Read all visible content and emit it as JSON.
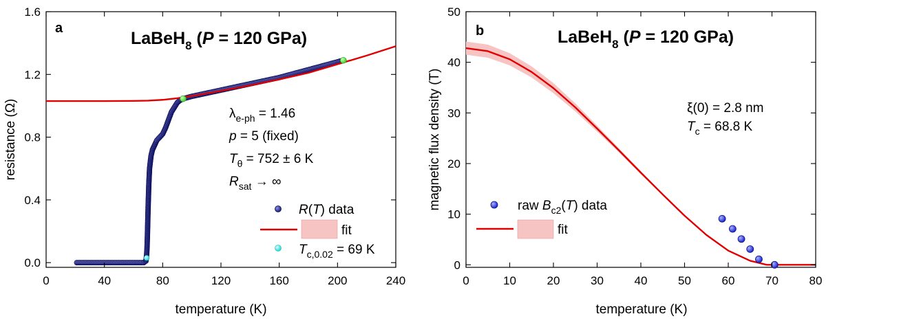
{
  "chart_data": [
    {
      "type": "scatter",
      "panel_label": "a",
      "title": {
        "main": "LaBeH",
        "sub": "8",
        "open": " (",
        "italic": "P",
        "rest": " = 120 GPa)"
      },
      "xlabel": "temperature (K)",
      "ylabel": "resistance (Ω)",
      "xlim": [
        0,
        240
      ],
      "ylim": [
        -0.03,
        1.6
      ],
      "xticks": [
        "0",
        "40",
        "80",
        "120",
        "160",
        "200",
        "240"
      ],
      "yticks": [
        "0.0",
        "0.4",
        "0.8",
        "1.2",
        "1.6"
      ],
      "annotations": {
        "lambda": {
          "sym": "λ",
          "sub": "e-ph",
          "rest": " = 1.46"
        },
        "p": {
          "italic": "p",
          "rest": " = 5 (fixed)"
        },
        "theta": {
          "italic": "T",
          "sub": "θ",
          "rest": " = 752 ± 6 K"
        },
        "rsat": {
          "italic": "R",
          "sub": "sat",
          "rest": " → ∞"
        }
      },
      "legend": {
        "data": {
          "italic": "R",
          "rest": "(T) data",
          "paren_open": "(",
          "paren_T": "T",
          "paren_close": ") data"
        },
        "fit": "fit",
        "tc": {
          "italic": "T",
          "sub": "c,0.02",
          "rest": " = 69 K"
        }
      },
      "series": [
        {
          "role": "data",
          "color": "#1c1f7a",
          "x": [
            21,
            30,
            40,
            50,
            60,
            67,
            68.5,
            69,
            69.3,
            69.6,
            70,
            70.5,
            71,
            72,
            73,
            74,
            75,
            76,
            78,
            80,
            82,
            84,
            86,
            88,
            90,
            92,
            94,
            100,
            110,
            120,
            130,
            140,
            150,
            160,
            170,
            180,
            190,
            200,
            204
          ],
          "y": [
            0,
            0,
            0,
            0,
            0,
            0,
            0.01,
            0.05,
            0.1,
            0.2,
            0.35,
            0.5,
            0.6,
            0.68,
            0.72,
            0.74,
            0.76,
            0.78,
            0.8,
            0.82,
            0.86,
            0.91,
            0.96,
            0.99,
            1.02,
            1.035,
            1.045,
            1.06,
            1.08,
            1.1,
            1.12,
            1.14,
            1.16,
            1.18,
            1.205,
            1.23,
            1.255,
            1.28,
            1.29
          ]
        },
        {
          "role": "fit",
          "color": "#e00000",
          "x": [
            0,
            20,
            40,
            60,
            70,
            80,
            90,
            100,
            120,
            140,
            160,
            180,
            200,
            220,
            240
          ],
          "y": [
            1.03,
            1.03,
            1.03,
            1.031,
            1.033,
            1.038,
            1.048,
            1.062,
            1.095,
            1.13,
            1.168,
            1.21,
            1.265,
            1.32,
            1.38
          ]
        },
        {
          "role": "fit-points",
          "color": "#55e040",
          "x": [
            94,
            204
          ],
          "y": [
            1.045,
            1.29
          ]
        },
        {
          "role": "tc",
          "color": "#38e8e8",
          "x": [
            69
          ],
          "y": [
            0.03
          ]
        }
      ]
    },
    {
      "type": "scatter",
      "panel_label": "b",
      "title": {
        "main": "LaBeH",
        "sub": "8",
        "open": " (",
        "italic": "P",
        "rest": " = 120 GPa)"
      },
      "xlabel": "temperature (K)",
      "ylabel": "magnetic flux density (T)",
      "xlim": [
        0,
        80
      ],
      "ylim": [
        -0.5,
        50
      ],
      "xticks": [
        "0",
        "10",
        "20",
        "30",
        "40",
        "50",
        "60",
        "70",
        "80"
      ],
      "yticks": [
        "0",
        "10",
        "20",
        "30",
        "40",
        "50"
      ],
      "annotations": {
        "xi": {
          "text": "ξ(0) = 2.8 nm"
        },
        "tc": {
          "italic": "T",
          "sub": "c",
          "rest": " = 68.8 K"
        }
      },
      "legend": {
        "data": {
          "pre": "raw ",
          "italic": "B",
          "sub": "c2",
          "paren_open": "(",
          "paren_T": "T",
          "paren_close": ") data"
        },
        "fit": "fit"
      },
      "series": [
        {
          "role": "data",
          "color": "#2233dd",
          "x": [
            58.6,
            61,
            63,
            65,
            67,
            70.6
          ],
          "y": [
            9.1,
            7.1,
            5.1,
            3.1,
            1.1,
            0
          ]
        },
        {
          "role": "fit",
          "color": "#e00000",
          "band_color": "#f7c4c4",
          "x": [
            0,
            5,
            10,
            15,
            20,
            25,
            30,
            35,
            40,
            45,
            50,
            55,
            60,
            65,
            68.8,
            70,
            75,
            80
          ],
          "y": [
            42.8,
            42.2,
            40.6,
            38.1,
            34.9,
            31.1,
            26.9,
            22.6,
            18.2,
            13.9,
            9.7,
            5.9,
            2.8,
            0.8,
            0,
            0,
            0,
            0
          ],
          "band_halfwidth": [
            1.3,
            1.3,
            1.2,
            1.1,
            1.0,
            0.8,
            0.6,
            0.4,
            0.3,
            0.2,
            0.15,
            0.1,
            0.1,
            0.05,
            0,
            0,
            0,
            0
          ]
        }
      ]
    }
  ]
}
